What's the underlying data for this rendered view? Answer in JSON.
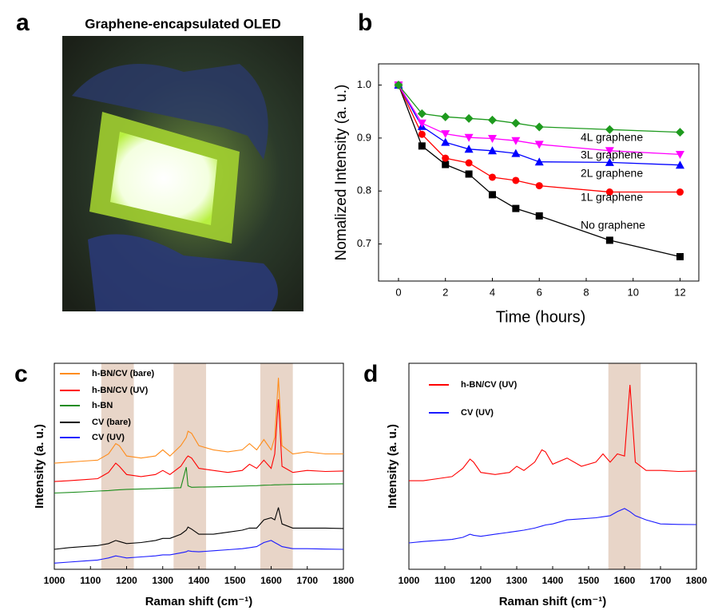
{
  "photo": {
    "panel_label": "a",
    "title": "Graphene-encapsulated OLED"
  },
  "chart_data": [
    {
      "type": "line",
      "panel_label": "b",
      "y_label": "Nomalized Intensity (a. u.)",
      "x_label": "Time (hours)",
      "x": [
        0,
        1,
        2,
        3,
        4,
        5,
        6,
        9,
        12
      ],
      "xlim": [
        -0.85,
        12.8
      ],
      "xticks": [
        0,
        2,
        4,
        6,
        8,
        10,
        12
      ],
      "ylim": [
        0.63,
        1.04
      ],
      "yticks": [
        0.7,
        0.8,
        0.9,
        {
          "value": 1,
          "label": "1.0"
        }
      ],
      "series": [
        {
          "name": "No graphene",
          "color": "#000000",
          "marker": "square",
          "values": [
            1.0,
            0.885,
            0.85,
            0.832,
            0.793,
            0.767,
            0.753,
            0.707,
            0.676
          ]
        },
        {
          "name": "1L graphene",
          "color": "#ff0000",
          "marker": "circle",
          "values": [
            1.0,
            0.907,
            0.862,
            0.853,
            0.826,
            0.82,
            0.81,
            0.798,
            0.798
          ]
        },
        {
          "name": "2L graphene",
          "color": "#0000ff",
          "marker": "triangle-up",
          "values": [
            1.0,
            0.922,
            0.892,
            0.879,
            0.876,
            0.871,
            0.855,
            0.854,
            0.849
          ]
        },
        {
          "name": "3L graphene",
          "color": "#ff00ff",
          "marker": "triangle-down",
          "values": [
            1.0,
            0.928,
            0.908,
            0.901,
            0.899,
            0.895,
            0.888,
            0.876,
            0.869
          ]
        },
        {
          "name": "4L graphene",
          "color": "#1e9a1e",
          "marker": "diamond",
          "values": [
            1.0,
            0.946,
            0.94,
            0.937,
            0.934,
            0.928,
            0.921,
            0.916,
            0.911
          ]
        }
      ]
    },
    {
      "type": "spectrum",
      "panel_label": "c",
      "y_label": "Intensity (a. u.)",
      "x_label": "Raman shift (cm⁻¹)",
      "x": [
        1000,
        1040,
        1080,
        1120,
        1150,
        1170,
        1180,
        1200,
        1240,
        1280,
        1300,
        1320,
        1350,
        1365,
        1370,
        1380,
        1400,
        1440,
        1480,
        1520,
        1540,
        1560,
        1580,
        1600,
        1610,
        1620,
        1630,
        1660,
        1700,
        1750,
        1800
      ],
      "xlim": [
        1000,
        1800
      ],
      "xticks": [
        1000,
        1100,
        1200,
        1300,
        1400,
        1500,
        1600,
        1700,
        1800
      ],
      "ylim": [
        0,
        100
      ],
      "bands": [
        [
          1130,
          1220
        ],
        [
          1330,
          1420
        ],
        [
          1570,
          1660
        ]
      ],
      "band_color": "#e8d5c8",
      "series": [
        {
          "name": "h-BN/CV (bare)",
          "color": "#ff8c1a",
          "values": [
            51.5,
            52,
            52.5,
            53,
            56,
            61,
            60,
            55,
            54,
            55,
            58,
            55,
            60,
            64,
            67,
            66,
            60,
            58,
            57,
            58,
            61,
            58,
            63,
            58,
            64,
            93,
            60,
            56,
            57,
            56,
            56
          ]
        },
        {
          "name": "h-BN/CV (UV)",
          "color": "#ff0000",
          "values": [
            42.6,
            43,
            43.5,
            44,
            47,
            51.5,
            50,
            46,
            45,
            46,
            48,
            46,
            50,
            54,
            55,
            54,
            49,
            48,
            47,
            48,
            51,
            49,
            53,
            49,
            56,
            82.5,
            50,
            47,
            48,
            47.5,
            47.7
          ]
        },
        {
          "name": "h-BN",
          "color": "#1a8c1a",
          "values": [
            37,
            37.3,
            37.6,
            38,
            38.2,
            38.5,
            38.6,
            38.8,
            39,
            39.2,
            39.3,
            39.4,
            39.6,
            49.6,
            40.5,
            39.8,
            39.9,
            40,
            40.2,
            40.4,
            40.5,
            40.6,
            40.8,
            40.9,
            41,
            41,
            41.1,
            41.2,
            41.3,
            41.4,
            41.5
          ]
        },
        {
          "name": "CV (bare)",
          "color": "#000000",
          "values": [
            9.7,
            10.5,
            11,
            11.5,
            12.5,
            14,
            13.5,
            12.5,
            13,
            14,
            15,
            15,
            17,
            19,
            20.5,
            19.5,
            17,
            17,
            18,
            19,
            20,
            20,
            24,
            25,
            24,
            30,
            22,
            20,
            20,
            20,
            19.8
          ]
        },
        {
          "name": "CV (UV)",
          "color": "#1a1aff",
          "values": [
            3,
            3.5,
            4,
            4.5,
            5.5,
            6.5,
            6.2,
            5.5,
            6,
            6.5,
            7,
            7,
            8,
            8.5,
            9,
            8.7,
            8.5,
            9,
            9.5,
            10,
            10.5,
            11,
            13,
            14,
            13,
            12,
            11,
            10,
            10,
            9.8,
            9.7
          ]
        }
      ]
    },
    {
      "type": "spectrum",
      "panel_label": "d",
      "y_label": "Intensity (a. u.)",
      "x_label": "Raman shift (cm⁻¹)",
      "x": [
        1000,
        1040,
        1080,
        1120,
        1150,
        1170,
        1180,
        1200,
        1240,
        1280,
        1300,
        1320,
        1350,
        1370,
        1380,
        1400,
        1440,
        1480,
        1520,
        1540,
        1560,
        1580,
        1600,
        1615,
        1630,
        1660,
        1700,
        1750,
        1800
      ],
      "xlim": [
        1000,
        1800
      ],
      "xticks": [
        1000,
        1100,
        1200,
        1300,
        1400,
        1500,
        1600,
        1700,
        1800
      ],
      "ylim": [
        0,
        100
      ],
      "bands": [
        [
          1555,
          1645
        ]
      ],
      "band_color": "#e8d5c8",
      "series": [
        {
          "name": "h-BN/CV (UV)",
          "color": "#ff0000",
          "values": [
            43,
            43,
            44,
            45,
            49,
            53.5,
            52,
            47,
            46,
            47,
            50,
            48,
            52,
            58,
            57,
            51,
            54,
            50,
            52,
            56,
            52,
            56,
            55,
            89.5,
            52,
            48,
            48,
            47.5,
            47.7
          ]
        },
        {
          "name": "CV (UV)",
          "color": "#1a1aff",
          "values": [
            12.8,
            13.5,
            14,
            14.5,
            15.5,
            17,
            16.5,
            16,
            17,
            18,
            18.5,
            19,
            20,
            21,
            21.5,
            22,
            24,
            24.5,
            25,
            25.5,
            26,
            28,
            29.5,
            28,
            26,
            24,
            22,
            21.8,
            21.7
          ]
        }
      ]
    }
  ]
}
